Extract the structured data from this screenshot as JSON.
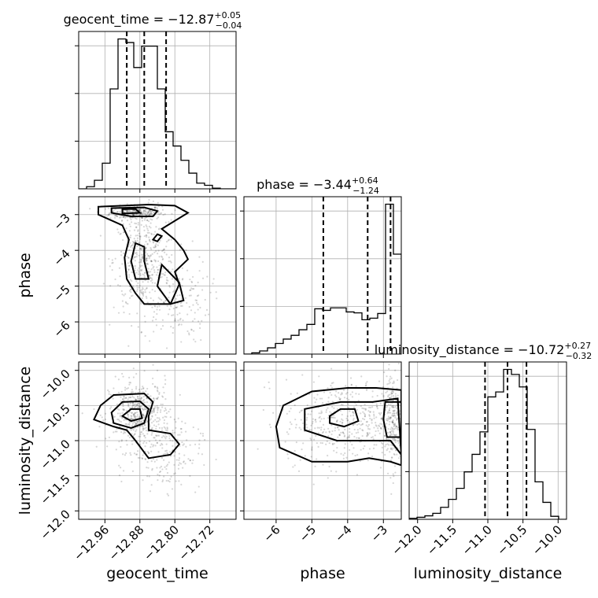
{
  "chart_data": {
    "type": "corner",
    "parameters": [
      "geocent_time",
      "phase",
      "luminosity_distance"
    ],
    "titles": {
      "geocent_time": {
        "name": "geocent_time",
        "median": "−12.87",
        "plus": "+0.05",
        "minus": "−0.04"
      },
      "phase": {
        "name": "phase",
        "median": "−3.44",
        "plus": "+0.64",
        "minus": "−1.24"
      },
      "luminosity_distance": {
        "name": "luminosity_distance",
        "median": "−10.72",
        "plus": "+0.27",
        "minus": "−0.32"
      }
    },
    "axes": {
      "geocent_time": {
        "label": "geocent_time",
        "range": [
          -13.02,
          -12.66
        ],
        "ticks": [
          -12.96,
          -12.88,
          -12.8,
          -12.72
        ],
        "tick_labels": [
          "−12.96",
          "−12.88",
          "−12.80",
          "−12.72"
        ]
      },
      "phase": {
        "label": "phase",
        "range": [
          -6.9,
          -2.5
        ],
        "ticks": [
          -6,
          -5,
          -4,
          -3
        ],
        "tick_labels": [
          "−6",
          "−5",
          "−4",
          "−3"
        ]
      },
      "luminosity_distance": {
        "label": "luminosity_distance",
        "range": [
          -12.12,
          -9.88
        ],
        "ticks": [
          -12.0,
          -11.5,
          -11.0,
          -10.5,
          -10.0
        ],
        "tick_labels": [
          "−12.0",
          "−11.5",
          "−11.0",
          "−10.5",
          "−10.0"
        ]
      }
    },
    "histograms": {
      "geocent_time": {
        "edges": [
          -13.02,
          -13.002,
          -12.984,
          -12.966,
          -12.948,
          -12.93,
          -12.912,
          -12.894,
          -12.876,
          -12.858,
          -12.84,
          -12.822,
          -12.804,
          -12.786,
          -12.768,
          -12.75,
          -12.732,
          -12.714,
          -12.696,
          -12.678,
          -12.66
        ],
        "counts": [
          0,
          3,
          12,
          36,
          140,
          210,
          205,
          170,
          200,
          200,
          140,
          80,
          60,
          40,
          22,
          8,
          5,
          1,
          0,
          0
        ],
        "quantiles": [
          -12.91,
          -12.87,
          -12.82
        ]
      },
      "phase": {
        "edges": [
          -6.9,
          -6.68,
          -6.46,
          -6.24,
          -6.02,
          -5.8,
          -5.58,
          -5.36,
          -5.14,
          -4.92,
          -4.7,
          -4.48,
          -4.26,
          -4.04,
          -3.82,
          -3.6,
          -3.38,
          -3.16,
          -2.94,
          -2.72,
          -2.5
        ],
        "counts": [
          0,
          4,
          10,
          20,
          34,
          48,
          60,
          78,
          95,
          145,
          140,
          148,
          148,
          135,
          132,
          110,
          115,
          130,
          480,
          320
        ],
        "quantiles": [
          -4.68,
          -3.44,
          -2.8
        ]
      },
      "luminosity_distance": {
        "edges": [
          -12.12,
          -12.008,
          -11.896,
          -11.784,
          -11.672,
          -11.56,
          -11.448,
          -11.336,
          -11.224,
          -11.112,
          -11.0,
          -10.888,
          -10.776,
          -10.664,
          -10.552,
          -10.44,
          -10.328,
          -10.216,
          -10.104,
          -9.992,
          -9.88
        ],
        "counts": [
          2,
          4,
          7,
          12,
          24,
          40,
          62,
          95,
          130,
          175,
          245,
          255,
          300,
          290,
          265,
          180,
          75,
          34,
          6,
          0
        ],
        "quantiles": [
          -11.04,
          -10.72,
          -10.45
        ]
      }
    },
    "density_regions": [
      {
        "x": "geocent_time",
        "y": "phase",
        "cx": -12.89,
        "cy": -2.95,
        "sx": 0.03,
        "sy": 0.1,
        "n": 260
      },
      {
        "x": "geocent_time",
        "y": "phase",
        "cx": -12.87,
        "cy": -4.3,
        "sx": 0.035,
        "sy": 0.7,
        "n": 420
      },
      {
        "x": "geocent_time",
        "y": "phase",
        "cx": -12.8,
        "cy": -5.4,
        "sx": 0.04,
        "sy": 0.6,
        "n": 160
      },
      {
        "x": "geocent_time",
        "y": "luminosity_distance",
        "cx": -12.88,
        "cy": -10.65,
        "sx": 0.035,
        "sy": 0.25,
        "n": 520
      },
      {
        "x": "geocent_time",
        "y": "luminosity_distance",
        "cx": -12.82,
        "cy": -11.2,
        "sx": 0.04,
        "sy": 0.25,
        "n": 160
      },
      {
        "x": "phase",
        "y": "luminosity_distance",
        "cx": -4.0,
        "cy": -10.72,
        "sx": 0.9,
        "sy": 0.3,
        "n": 500
      },
      {
        "x": "phase",
        "y": "luminosity_distance",
        "cx": -2.75,
        "cy": -10.72,
        "sx": 0.15,
        "sy": 0.35,
        "n": 240
      }
    ],
    "contours": [
      {
        "x": "geocent_time",
        "y": "phase",
        "level": "outer",
        "points": [
          [
            -12.975,
            -2.78
          ],
          [
            -12.86,
            -2.72
          ],
          [
            -12.8,
            -2.75
          ],
          [
            -12.77,
            -2.95
          ],
          [
            -12.79,
            -3.1
          ],
          [
            -12.83,
            -3.4
          ],
          [
            -12.8,
            -3.7
          ],
          [
            -12.78,
            -4.0
          ],
          [
            -12.77,
            -4.25
          ],
          [
            -12.8,
            -4.6
          ],
          [
            -12.79,
            -4.95
          ],
          [
            -12.81,
            -5.5
          ],
          [
            -12.87,
            -5.5
          ],
          [
            -12.89,
            -5.2
          ],
          [
            -12.91,
            -4.8
          ],
          [
            -12.915,
            -4.2
          ],
          [
            -12.905,
            -3.7
          ],
          [
            -12.92,
            -3.3
          ],
          [
            -12.975,
            -3.0
          ]
        ]
      },
      {
        "x": "geocent_time",
        "y": "phase",
        "level": "outer2",
        "points": [
          [
            -12.83,
            -4.4
          ],
          [
            -12.79,
            -4.9
          ],
          [
            -12.78,
            -5.4
          ],
          [
            -12.81,
            -5.5
          ],
          [
            -12.84,
            -5.0
          ]
        ]
      },
      {
        "x": "geocent_time",
        "y": "phase",
        "level": "inner",
        "points": [
          [
            -12.945,
            -2.82
          ],
          [
            -12.87,
            -2.8
          ],
          [
            -12.84,
            -2.9
          ],
          [
            -12.85,
            -3.05
          ],
          [
            -12.9,
            -3.05
          ],
          [
            -12.945,
            -2.95
          ]
        ]
      },
      {
        "x": "geocent_time",
        "y": "phase",
        "level": "inner2",
        "points": [
          [
            -12.89,
            -3.8
          ],
          [
            -12.87,
            -3.9
          ],
          [
            -12.87,
            -4.3
          ],
          [
            -12.86,
            -4.8
          ],
          [
            -12.89,
            -4.8
          ],
          [
            -12.9,
            -4.3
          ]
        ]
      },
      {
        "x": "geocent_time",
        "y": "phase",
        "level": "core",
        "points": [
          [
            -12.92,
            -2.85
          ],
          [
            -12.89,
            -2.84
          ],
          [
            -12.88,
            -2.95
          ],
          [
            -12.92,
            -2.97
          ]
        ]
      },
      {
        "x": "geocent_time",
        "y": "phase",
        "level": "small",
        "points": [
          [
            -12.84,
            -3.55
          ],
          [
            -12.83,
            -3.6
          ],
          [
            -12.84,
            -3.75
          ],
          [
            -12.85,
            -3.7
          ]
        ]
      },
      {
        "x": "geocent_time",
        "y": "luminosity_distance",
        "level": "outer",
        "points": [
          [
            -12.94,
            -10.35
          ],
          [
            -12.87,
            -10.33
          ],
          [
            -12.85,
            -10.45
          ],
          [
            -12.86,
            -10.65
          ],
          [
            -12.86,
            -10.85
          ],
          [
            -12.81,
            -10.9
          ],
          [
            -12.79,
            -11.05
          ],
          [
            -12.81,
            -11.2
          ],
          [
            -12.86,
            -11.25
          ],
          [
            -12.89,
            -11.0
          ],
          [
            -12.91,
            -10.85
          ],
          [
            -12.94,
            -10.8
          ],
          [
            -12.985,
            -10.7
          ],
          [
            -12.97,
            -10.5
          ]
        ]
      },
      {
        "x": "geocent_time",
        "y": "luminosity_distance",
        "level": "inner",
        "points": [
          [
            -12.92,
            -10.45
          ],
          [
            -12.88,
            -10.44
          ],
          [
            -12.86,
            -10.55
          ],
          [
            -12.87,
            -10.75
          ],
          [
            -12.9,
            -10.82
          ],
          [
            -12.94,
            -10.75
          ],
          [
            -12.945,
            -10.6
          ]
        ]
      },
      {
        "x": "geocent_time",
        "y": "luminosity_distance",
        "level": "core",
        "points": [
          [
            -12.9,
            -10.55
          ],
          [
            -12.88,
            -10.55
          ],
          [
            -12.875,
            -10.68
          ],
          [
            -12.9,
            -10.72
          ],
          [
            -12.92,
            -10.65
          ]
        ]
      },
      {
        "x": "phase",
        "y": "luminosity_distance",
        "level": "outer",
        "points": [
          [
            -5.8,
            -10.5
          ],
          [
            -5.0,
            -10.3
          ],
          [
            -4.0,
            -10.25
          ],
          [
            -3.2,
            -10.25
          ],
          [
            -2.5,
            -10.28
          ],
          [
            -2.5,
            -11.35
          ],
          [
            -2.8,
            -11.3
          ],
          [
            -3.4,
            -11.25
          ],
          [
            -4.0,
            -11.3
          ],
          [
            -5.0,
            -11.3
          ],
          [
            -5.9,
            -11.1
          ],
          [
            -6.0,
            -10.8
          ]
        ]
      },
      {
        "x": "phase",
        "y": "luminosity_distance",
        "level": "mid",
        "points": [
          [
            -5.2,
            -10.55
          ],
          [
            -4.2,
            -10.45
          ],
          [
            -3.3,
            -10.45
          ],
          [
            -2.6,
            -10.4
          ],
          [
            -2.5,
            -11.2
          ],
          [
            -2.8,
            -11.0
          ],
          [
            -3.4,
            -11.0
          ],
          [
            -4.3,
            -11.0
          ],
          [
            -5.2,
            -10.85
          ]
        ]
      },
      {
        "x": "phase",
        "y": "luminosity_distance",
        "level": "inner",
        "points": [
          [
            -4.5,
            -10.65
          ],
          [
            -4.2,
            -10.55
          ],
          [
            -3.8,
            -10.55
          ],
          [
            -3.7,
            -10.72
          ],
          [
            -4.1,
            -10.8
          ],
          [
            -4.5,
            -10.75
          ]
        ]
      },
      {
        "x": "phase",
        "y": "luminosity_distance",
        "level": "inner2",
        "points": [
          [
            -2.95,
            -10.45
          ],
          [
            -2.5,
            -10.45
          ],
          [
            -2.5,
            -10.95
          ],
          [
            -2.9,
            -10.95
          ],
          [
            -3.0,
            -10.7
          ]
        ]
      }
    ],
    "grid": true
  }
}
